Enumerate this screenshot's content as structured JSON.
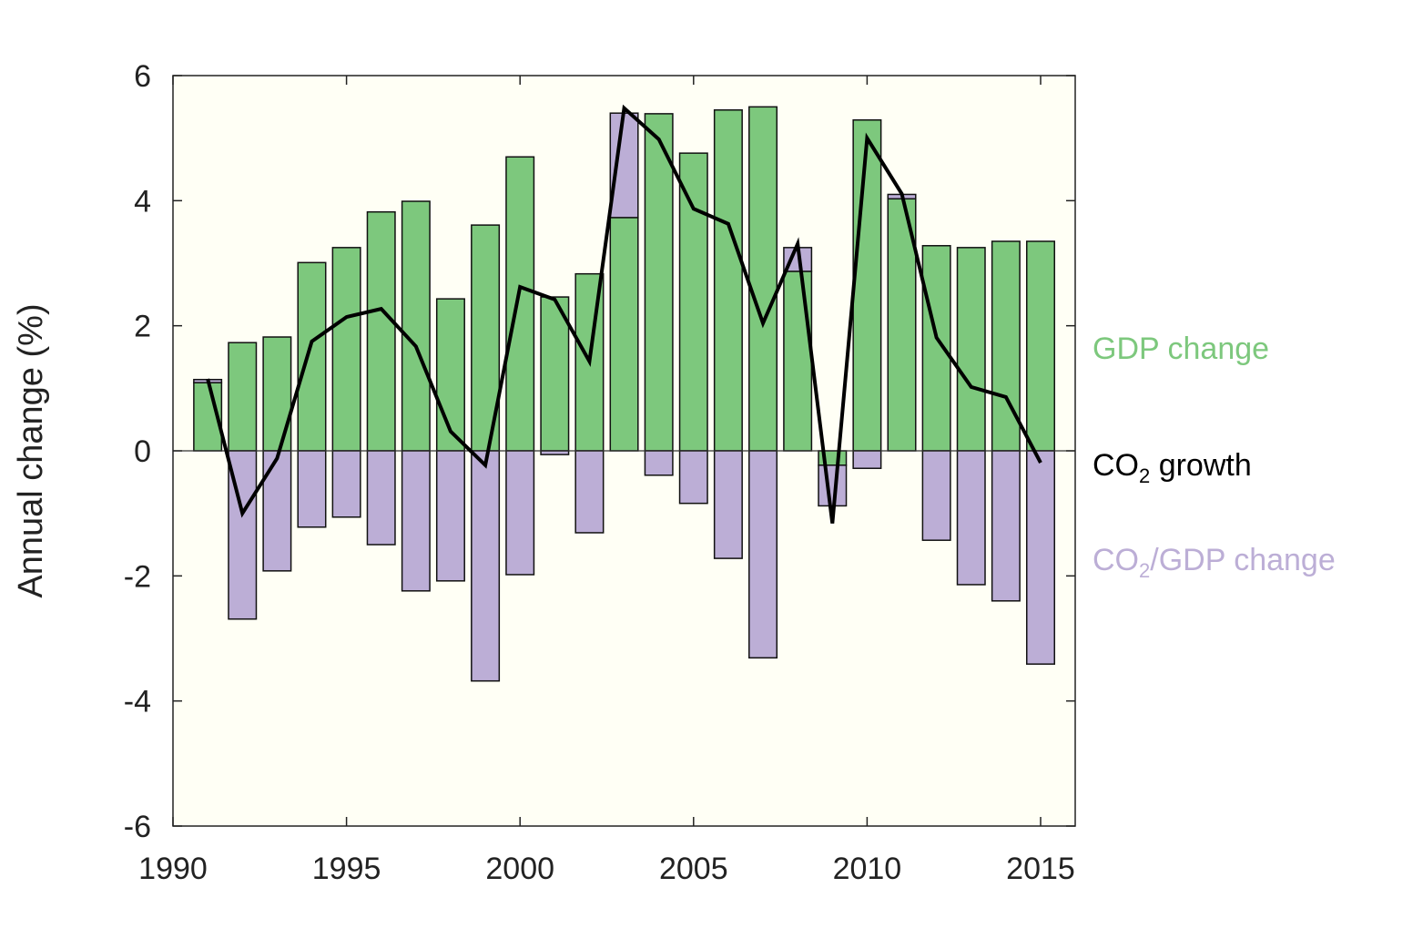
{
  "chart_data": {
    "type": "bar",
    "title": "",
    "xlabel": "",
    "ylabel": "Annual change (%)",
    "xlim": [
      1990,
      2016
    ],
    "ylim": [
      -6,
      6
    ],
    "xticks": [
      "1990",
      "1995",
      "2000",
      "2005",
      "2010",
      "2015"
    ],
    "yticks": [
      "6",
      "4",
      "2",
      "0",
      "-2",
      "-4",
      "-6"
    ],
    "grid": false,
    "stacked": true,
    "x": [
      1991,
      1992,
      1993,
      1994,
      1995,
      1996,
      1997,
      1998,
      1999,
      2000,
      2001,
      2002,
      2003,
      2004,
      2005,
      2006,
      2007,
      2008,
      2009,
      2010,
      2011,
      2012,
      2013,
      2014,
      2015
    ],
    "series": [
      {
        "name": "GDP change",
        "kind": "bar",
        "color": "#7dc87d",
        "values": [
          1.09,
          1.73,
          1.82,
          3.01,
          3.25,
          3.82,
          3.99,
          2.43,
          3.61,
          4.7,
          2.46,
          2.83,
          3.73,
          5.39,
          4.76,
          5.45,
          5.5,
          2.87,
          -0.23,
          5.29,
          4.03,
          3.28,
          3.25,
          3.35,
          3.35
        ]
      },
      {
        "name": "CO2/GDP change",
        "kind": "bar",
        "color": "#bcaed6",
        "values": [
          0.05,
          -2.69,
          -1.92,
          -1.22,
          -1.06,
          -1.5,
          -2.24,
          -2.08,
          -3.68,
          -1.98,
          -0.06,
          -1.31,
          1.67,
          -0.39,
          -0.84,
          -1.72,
          -3.31,
          0.38,
          -0.65,
          -0.28,
          0.07,
          -1.43,
          -2.14,
          -2.4,
          -3.41
        ]
      },
      {
        "name": "CO2 growth",
        "kind": "line",
        "color": "#000000",
        "values": [
          1.15,
          -1.0,
          -0.12,
          1.75,
          2.14,
          2.27,
          1.67,
          0.31,
          -0.23,
          2.62,
          2.42,
          1.43,
          5.48,
          4.98,
          3.87,
          3.63,
          2.04,
          3.31,
          -1.16,
          5.0,
          4.11,
          1.81,
          1.02,
          0.86,
          -0.19
        ]
      }
    ],
    "legend": {
      "placement": "right",
      "gdp_label": "GDP change",
      "co2_label_main": "CO",
      "co2_label_sub": "2",
      "co2_label_rest": " growth",
      "int_label_main": "CO",
      "int_label_sub": "2",
      "int_label_rest": "/GDP change"
    },
    "background": "#fffff5"
  }
}
